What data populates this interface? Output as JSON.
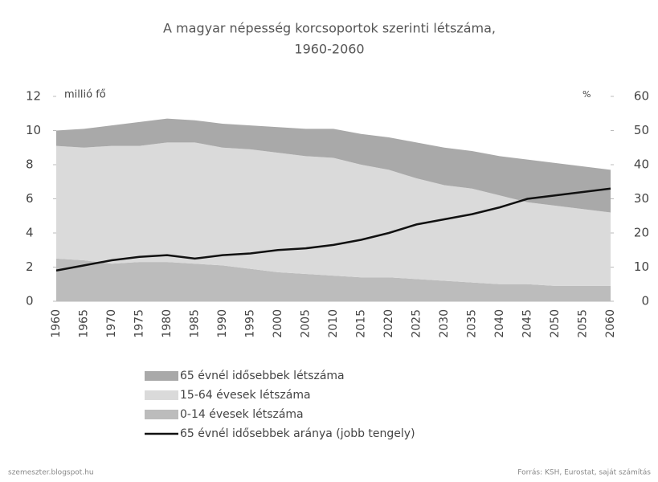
{
  "chart_data": {
    "type": "stacked_area_line",
    "title": [
      "A magyar népesség korcsoportok szerinti létszáma,",
      "1960-2060"
    ],
    "ylabel": "millió fő",
    "y2label": "%",
    "categories": [
      "1960",
      "1965",
      "1970",
      "1975",
      "1980",
      "1985",
      "1990",
      "1995",
      "2000",
      "2005",
      "2010",
      "2015",
      "2020",
      "2025",
      "2030",
      "2035",
      "2040",
      "2045",
      "2050",
      "2055",
      "2060"
    ],
    "series": [
      {
        "name": "0-14 évesek létszáma",
        "color": "#bcbcbc",
        "values": [
          2.5,
          2.4,
          2.2,
          2.3,
          2.3,
          2.2,
          2.1,
          1.9,
          1.7,
          1.6,
          1.5,
          1.4,
          1.4,
          1.3,
          1.2,
          1.1,
          1.0,
          1.0,
          0.9,
          0.9,
          0.9
        ]
      },
      {
        "name": "15-64 évesek létszáma",
        "color": "#dadada",
        "values": [
          6.6,
          6.6,
          6.9,
          6.8,
          7.0,
          7.1,
          6.9,
          7.0,
          7.0,
          6.9,
          6.9,
          6.6,
          6.3,
          5.9,
          5.6,
          5.5,
          5.2,
          4.8,
          4.7,
          4.5,
          4.3
        ]
      },
      {
        "name": "65 évnél idősebbek létszáma",
        "color": "#a9a9a9",
        "values": [
          0.9,
          1.1,
          1.2,
          1.4,
          1.4,
          1.3,
          1.4,
          1.4,
          1.5,
          1.6,
          1.7,
          1.8,
          1.9,
          2.1,
          2.2,
          2.2,
          2.3,
          2.5,
          2.5,
          2.5,
          2.5
        ]
      },
      {
        "name": "65 évnél idősebbek aránya (jobb tengely)",
        "color": "#111111",
        "axis": "y2",
        "values": [
          9,
          10.5,
          12,
          13,
          13.5,
          12.5,
          13.5,
          14,
          15,
          15.5,
          16.5,
          18,
          20,
          22.5,
          24,
          25.5,
          27.5,
          30,
          31,
          32,
          33
        ]
      }
    ],
    "ylim": [
      0,
      12
    ],
    "yticks": [
      0,
      2,
      4,
      6,
      8,
      10,
      12
    ],
    "y2lim": [
      0,
      60
    ],
    "y2ticks": [
      0,
      10,
      20,
      30,
      40,
      50,
      60
    ],
    "source_left": "szemeszter.blogspot.hu",
    "source_right": "Forrás: KSH, Eurostat, saját számítás"
  }
}
